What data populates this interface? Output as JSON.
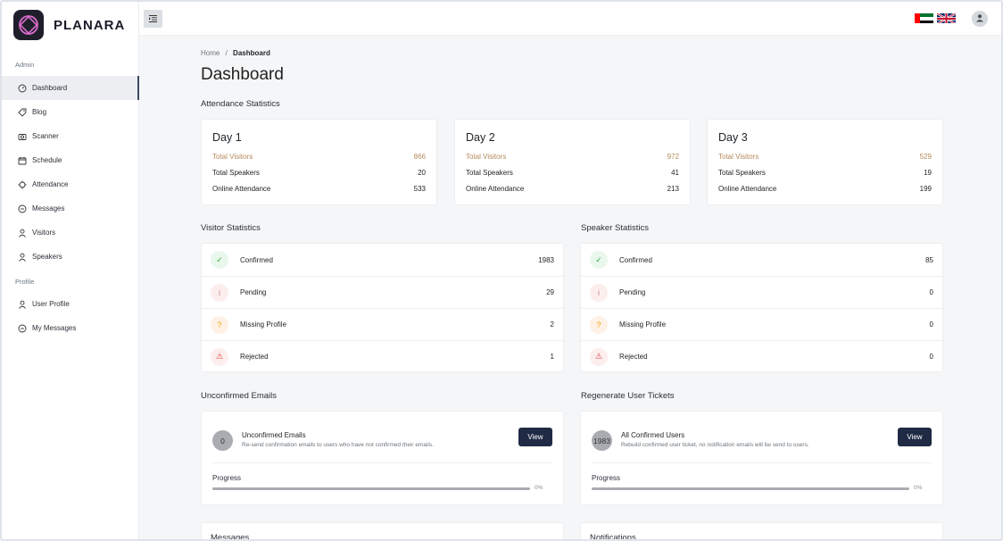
{
  "brand": {
    "name": "PLANARA"
  },
  "sidebar": {
    "admin_label": "Admin",
    "profile_label": "Profile",
    "items": [
      {
        "label": "Dashboard",
        "icon": "gauge-icon",
        "active": true
      },
      {
        "label": "Blog",
        "icon": "tag-icon"
      },
      {
        "label": "Scanner",
        "icon": "camera-icon"
      },
      {
        "label": "Schedule",
        "icon": "calendar-icon"
      },
      {
        "label": "Attendance",
        "icon": "target-icon"
      },
      {
        "label": "Messages",
        "icon": "chat-icon"
      },
      {
        "label": "Visitors",
        "icon": "user-icon"
      },
      {
        "label": "Speakers",
        "icon": "user-icon"
      }
    ],
    "profile_items": [
      {
        "label": "User Profile",
        "icon": "user-icon"
      },
      {
        "label": "My Messages",
        "icon": "chat-icon"
      }
    ]
  },
  "breadcrumb": {
    "home": "Home",
    "separator": "/",
    "current": "Dashboard"
  },
  "page_title": "Dashboard",
  "attendance": {
    "title": "Attendance Statistics",
    "days": [
      {
        "title": "Day 1",
        "visitors_label": "Total Visitors",
        "visitors": "866",
        "speakers_label": "Total Speakers",
        "speakers": "20",
        "online_label": "Online Attendance",
        "online": "533"
      },
      {
        "title": "Day 2",
        "visitors_label": "Total Visitors",
        "visitors": "972",
        "speakers_label": "Total Speakers",
        "speakers": "41",
        "online_label": "Online Attendance",
        "online": "213"
      },
      {
        "title": "Day 3",
        "visitors_label": "Total Visitors",
        "visitors": "529",
        "speakers_label": "Total Speakers",
        "speakers": "19",
        "online_label": "Online Attendance",
        "online": "199"
      }
    ]
  },
  "visitor_stats": {
    "title": "Visitor Statistics",
    "rows": [
      {
        "label": "Confirmed",
        "value": "1983"
      },
      {
        "label": "Pending",
        "value": "29"
      },
      {
        "label": "Missing Profile",
        "value": "2"
      },
      {
        "label": "Rejected",
        "value": "1"
      }
    ]
  },
  "speaker_stats": {
    "title": "Speaker Statistics",
    "rows": [
      {
        "label": "Confirmed",
        "value": "85"
      },
      {
        "label": "Pending",
        "value": "0"
      },
      {
        "label": "Missing Profile",
        "value": "0"
      },
      {
        "label": "Rejected",
        "value": "0"
      }
    ]
  },
  "unconfirmed": {
    "title": "Unconfirmed Emails",
    "count": "0",
    "item_title": "Unconfirmed Emails",
    "item_sub": "Re-send confirmation emails to users who have not confirmed their emails.",
    "button": "View",
    "progress_label": "Progress",
    "progress_pct": "0%",
    "progress_value": 0
  },
  "regenerate": {
    "title": "Regenerate User Tickets",
    "count": "1983",
    "item_title": "All Confirmed Users",
    "item_sub": "Rebuild confirmed user ticket, no notification emails will be send to users.",
    "button": "View",
    "progress_label": "Progress",
    "progress_pct": "0%",
    "progress_value": 0
  },
  "bottom": {
    "messages": "Messages",
    "notifications": "Notifications"
  },
  "colors": {
    "primary": "#1f2a44",
    "highlight": "#b48a5a",
    "success": "#2fb344",
    "warning": "#f59f00",
    "danger": "#e03131"
  }
}
